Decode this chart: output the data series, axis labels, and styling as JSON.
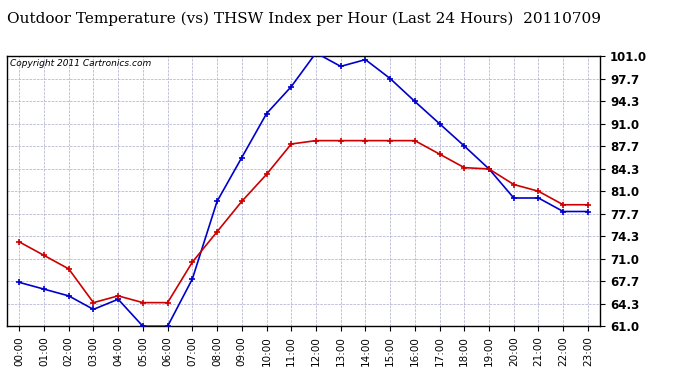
{
  "title": "Outdoor Temperature (vs) THSW Index per Hour (Last 24 Hours)  20110709",
  "copyright": "Copyright 2011 Cartronics.com",
  "hours": [
    "00:00",
    "01:00",
    "02:00",
    "03:00",
    "04:00",
    "05:00",
    "06:00",
    "07:00",
    "08:00",
    "09:00",
    "10:00",
    "11:00",
    "12:00",
    "13:00",
    "14:00",
    "15:00",
    "16:00",
    "17:00",
    "18:00",
    "19:00",
    "20:00",
    "21:00",
    "22:00",
    "23:00"
  ],
  "temp": [
    73.5,
    71.5,
    69.5,
    64.5,
    65.5,
    64.5,
    64.5,
    70.5,
    75.0,
    79.5,
    83.5,
    88.0,
    88.5,
    88.5,
    88.5,
    88.5,
    88.5,
    86.5,
    84.5,
    84.3,
    82.0,
    81.0,
    79.0,
    79.0
  ],
  "thsw": [
    67.5,
    66.5,
    65.5,
    63.5,
    65.0,
    61.0,
    61.0,
    68.0,
    79.5,
    86.0,
    92.5,
    96.5,
    101.5,
    99.5,
    100.5,
    97.7,
    94.3,
    91.0,
    87.7,
    84.3,
    80.0,
    80.0,
    78.0,
    78.0
  ],
  "temp_color": "#cc0000",
  "thsw_color": "#0000cc",
  "ylim_min": 61.0,
  "ylim_max": 101.0,
  "yticks": [
    61.0,
    64.3,
    67.7,
    71.0,
    74.3,
    77.7,
    81.0,
    84.3,
    87.7,
    91.0,
    94.3,
    97.7,
    101.0
  ],
  "bg_color": "#ffffff",
  "plot_bg": "#ffffff",
  "grid_color": "#aaaacc",
  "title_fontsize": 11,
  "tick_fontsize": 7.5,
  "ytick_fontsize": 8.5
}
